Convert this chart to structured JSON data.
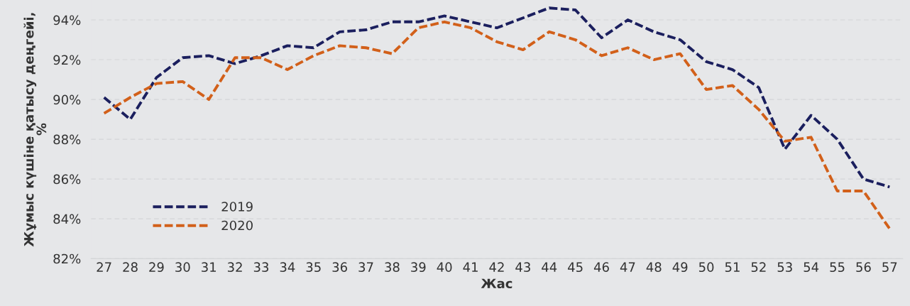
{
  "chart_data": {
    "type": "line",
    "xlabel": "Жас",
    "ylabel": "Жұмыс күшіне қатысу деңгейі,\n%",
    "categories": [
      "27",
      "28",
      "29",
      "30",
      "31",
      "32",
      "33",
      "34",
      "35",
      "36",
      "37",
      "38",
      "39",
      "40",
      "41",
      "42",
      "43",
      "44",
      "45",
      "46",
      "47",
      "48",
      "49",
      "50",
      "51",
      "52",
      "53",
      "54",
      "55",
      "56",
      "57"
    ],
    "series": [
      {
        "name": "2019",
        "color": "#1b1f5e",
        "values": [
          90.1,
          89.0,
          91.1,
          92.1,
          92.2,
          91.8,
          92.2,
          92.7,
          92.6,
          93.4,
          93.5,
          93.9,
          93.9,
          94.2,
          93.9,
          93.6,
          94.1,
          94.6,
          94.5,
          93.1,
          94.0,
          93.4,
          93.0,
          91.9,
          91.5,
          90.6,
          87.5,
          89.2,
          88.0,
          86.0,
          85.6
        ]
      },
      {
        "name": "2020",
        "color": "#d2601a",
        "values": [
          89.3,
          90.1,
          90.8,
          90.9,
          90.0,
          92.1,
          92.1,
          91.5,
          92.2,
          92.7,
          92.6,
          92.3,
          93.6,
          93.9,
          93.6,
          92.9,
          92.5,
          93.4,
          93.0,
          92.2,
          92.6,
          92.0,
          92.3,
          90.5,
          90.7,
          89.5,
          87.9,
          88.1,
          85.4,
          85.4,
          83.5
        ]
      }
    ],
    "ylim": [
      82,
      95
    ],
    "yticks": [
      {
        "value": 82,
        "label": "82%"
      },
      {
        "value": 84,
        "label": "84%"
      },
      {
        "value": 86,
        "label": "86%"
      },
      {
        "value": 88,
        "label": "88%"
      },
      {
        "value": 90,
        "label": "90%"
      },
      {
        "value": 92,
        "label": "92%"
      },
      {
        "value": 94,
        "label": "94%"
      }
    ],
    "grid": "y",
    "legend": "bottom left",
    "line_style": "dashed",
    "marker": "none"
  }
}
